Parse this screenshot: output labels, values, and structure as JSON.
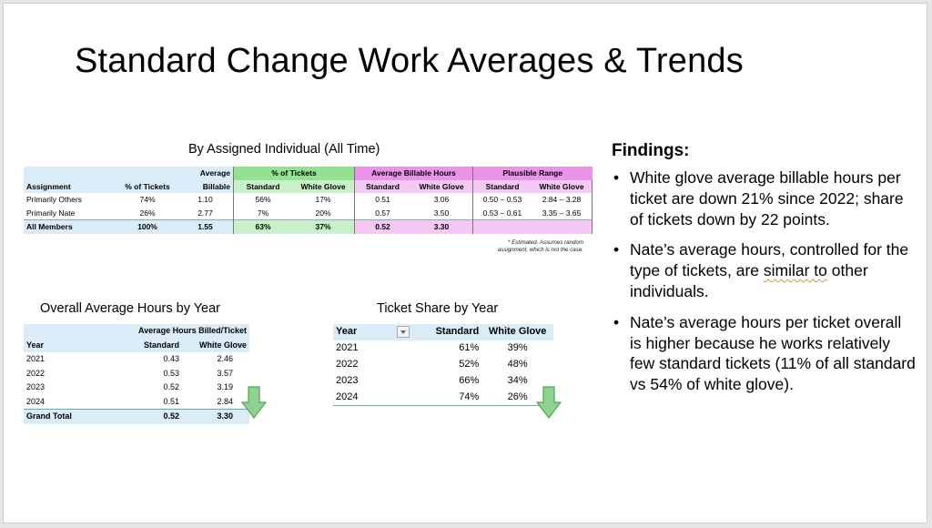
{
  "slide": {
    "title": "Standard Change Work Averages & Trends"
  },
  "assigned_table": {
    "title": "By Assigned Individual (All Time)",
    "group_headers": {
      "pct_tickets": "% of Tickets",
      "avg_billable_hours": "Average Billable Hours",
      "plausible_range": "Plausible Range"
    },
    "headers": {
      "assignment": "Assignment",
      "pct_tickets": "% of Tickets",
      "average_billable_top": "Average",
      "average_billable_bottom": "Billable",
      "standard": "Standard",
      "white_glove": "White Glove"
    },
    "rows": [
      {
        "assignment": "Primarily Others",
        "pct": "74%",
        "avg": "1.10",
        "pct_std": "56%",
        "pct_wg": "17%",
        "hrs_std": "0.51",
        "hrs_wg": "3.06",
        "range_std": "0.50 – 0.53",
        "range_wg": "2.84 – 3.28"
      },
      {
        "assignment": "Primarily Nate",
        "pct": "26%",
        "avg": "2.77",
        "pct_std": "7%",
        "pct_wg": "20%",
        "hrs_std": "0.57",
        "hrs_wg": "3.50",
        "range_std": "0.53 – 0.61",
        "range_wg": "3.35 – 3.65"
      }
    ],
    "total": {
      "assignment": "All Members",
      "pct": "100%",
      "avg": "1.55",
      "pct_std": "63%",
      "pct_wg": "37%",
      "hrs_std": "0.52",
      "hrs_wg": "3.30"
    },
    "note_line1": "* Estimated. Assumes random",
    "note_line2": "assignment, which is not the case."
  },
  "overall_table": {
    "title": "Overall Average Hours by Year",
    "header_group": "Average Hours Billed/Ticket",
    "headers": {
      "year": "Year",
      "standard": "Standard",
      "white_glove": "White Glove"
    },
    "rows": [
      {
        "year": "2021",
        "standard": "0.43",
        "white_glove": "2.46"
      },
      {
        "year": "2022",
        "standard": "0.53",
        "white_glove": "3.57"
      },
      {
        "year": "2023",
        "standard": "0.52",
        "white_glove": "3.19"
      },
      {
        "year": "2024",
        "standard": "0.51",
        "white_glove": "2.84"
      }
    ],
    "total": {
      "year": "Grand Total",
      "standard": "0.52",
      "white_glove": "3.30"
    }
  },
  "share_table": {
    "title": "Ticket Share by Year",
    "headers": {
      "year": "Year",
      "standard": "Standard",
      "white_glove": "White Glove"
    },
    "rows": [
      {
        "year": "2021",
        "standard": "61%",
        "white_glove": "39%"
      },
      {
        "year": "2022",
        "standard": "52%",
        "white_glove": "48%"
      },
      {
        "year": "2023",
        "standard": "66%",
        "white_glove": "34%"
      },
      {
        "year": "2024",
        "standard": "74%",
        "white_glove": "26%"
      }
    ]
  },
  "findings": {
    "title": "Findings:",
    "bullet1": "White glove average billable hours per ticket are down 21% since 2022; share of tickets down by 22 points.",
    "bullet2_start": "Nate’s average hours, controlled for the type of tickets, are ",
    "bullet2_flagged": "similar to",
    "bullet2_end": " other individuals.",
    "bullet3": "Nate’s average hours per ticket overall is higher because he works relatively few standard tickets (11% of all standard vs 54% of white glove)."
  },
  "colors": {
    "arrow_green": "#8fd18f",
    "header_blue": "#d9ecf7",
    "header_green": "#92e292",
    "header_pink": "#e993e9"
  }
}
